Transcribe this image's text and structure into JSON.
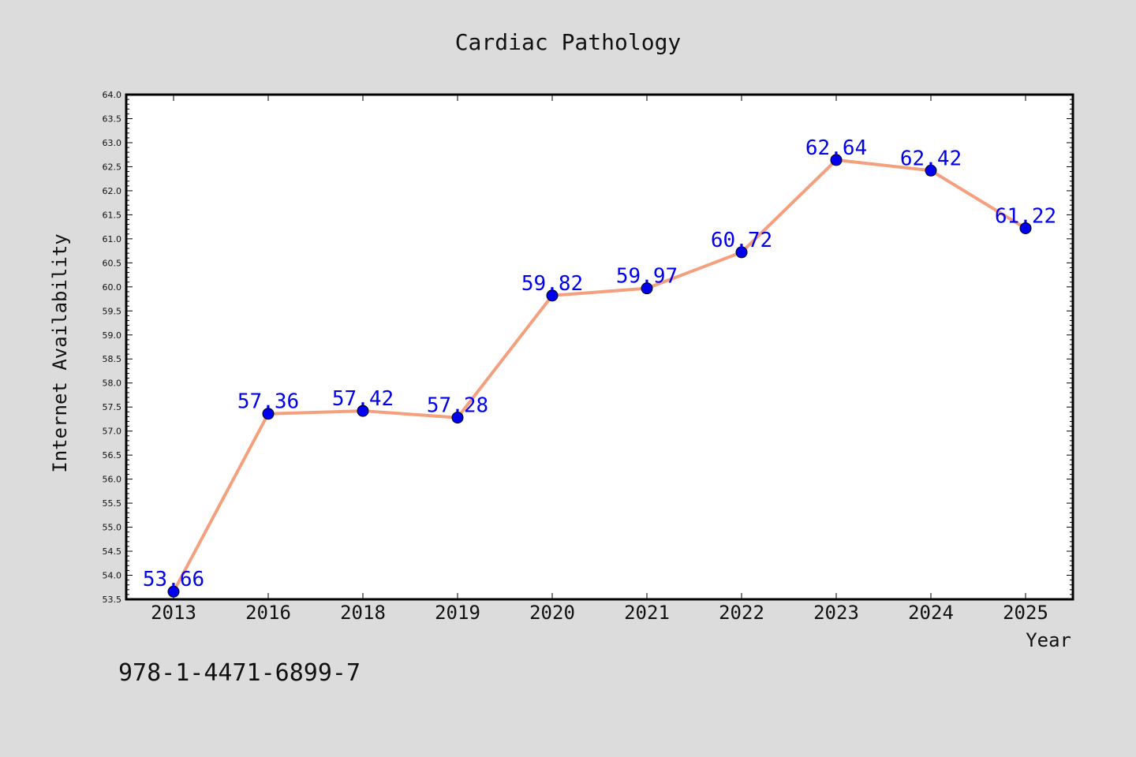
{
  "chart_data": {
    "type": "line",
    "title": "Cardiac Pathology",
    "xlabel": "Year",
    "ylabel": "Internet Availability",
    "categories": [
      "2013",
      "2016",
      "2018",
      "2019",
      "2020",
      "2021",
      "2022",
      "2023",
      "2024",
      "2025"
    ],
    "series": [
      {
        "values": [
          53.66,
          57.36,
          57.42,
          57.28,
          59.82,
          59.97,
          60.72,
          62.64,
          62.42,
          61.22
        ],
        "line_color": "#f4a07e",
        "marker_color": "#0000ee",
        "label_color": "#0000ee"
      }
    ],
    "data_labels": [
      "53.66",
      "57.36",
      "57.42",
      "57.28",
      "59.82",
      "59.97",
      "60.72",
      "62.64",
      "62.42",
      "61.22"
    ],
    "ylim": [
      53.5,
      64.0
    ],
    "yticks": [
      "53.5",
      "54.0",
      "54.5",
      "55.0",
      "55.5",
      "56.0",
      "56.5",
      "57.0",
      "57.5",
      "58.0",
      "58.5",
      "59.0",
      "59.5",
      "60.0",
      "60.5",
      "61.0",
      "61.5",
      "62.0",
      "62.5",
      "63.0",
      "63.5",
      "64.0"
    ],
    "grid": false,
    "legend": "none"
  },
  "footer_text": "978-1-4471-6899-7"
}
